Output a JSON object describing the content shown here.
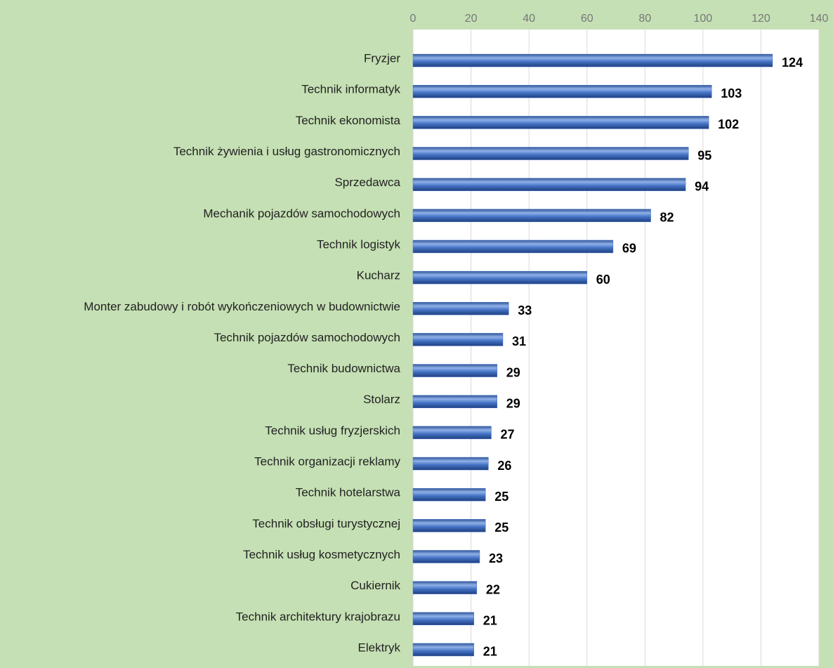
{
  "chart_data": {
    "type": "bar",
    "categories": [
      "Fryzjer",
      "Technik informatyk",
      "Technik ekonomista",
      "Technik żywienia i usług gastronomicznych",
      "Sprzedawca",
      "Mechanik pojazdów samochodowych",
      "Technik logistyk",
      "Kucharz",
      "Monter zabudowy i robót wykończeniowych w budownictwie",
      "Technik pojazdów samochodowych",
      "Technik budownictwa",
      "Stolarz",
      "Technik usług fryzjerskich",
      "Technik organizacji reklamy",
      "Technik hotelarstwa",
      "Technik obsługi turystycznej",
      "Technik usług kosmetycznych",
      "Cukiernik",
      "Technik architektury krajobrazu",
      "Elektryk"
    ],
    "values": [
      124,
      103,
      102,
      95,
      94,
      82,
      69,
      60,
      33,
      31,
      29,
      29,
      27,
      26,
      25,
      25,
      23,
      22,
      21,
      21
    ],
    "color": "#4472c4",
    "xlim": [
      0,
      140
    ],
    "xticks": [
      0,
      20,
      40,
      60,
      80,
      100,
      120,
      140
    ],
    "grid": true
  }
}
